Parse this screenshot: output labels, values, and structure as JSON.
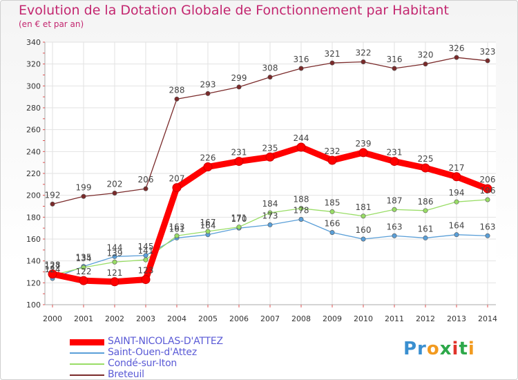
{
  "header": {
    "title": "Evolution de la Dotation Globale de Fonctionnement par Habitant",
    "subtitle": "(en € et par an)"
  },
  "logo": {
    "text": "Proxiti"
  },
  "colors": {
    "title": "#c3266f",
    "axis_text": "#333333",
    "grid": "#e2e2e2",
    "legend_text": "#5a5ad6"
  },
  "chart_data": {
    "type": "line",
    "title": "Evolution de la Dotation Globale de Fonctionnement par Habitant",
    "subtitle": "(en € et par an)",
    "x": [
      "2000",
      "2001",
      "2002",
      "2003",
      "2004",
      "2005",
      "2006",
      "2007",
      "2008",
      "2009",
      "2010",
      "2011",
      "2012",
      "2013",
      "2014"
    ],
    "ylim": [
      100,
      340
    ],
    "yticks": [
      100,
      120,
      140,
      160,
      180,
      200,
      220,
      240,
      260,
      280,
      300,
      320,
      340
    ],
    "grid": true,
    "legend_position": "bottom-left",
    "series": [
      {
        "name": "SAINT-NICOLAS-D'ATTEZ",
        "color": "#ff0000",
        "values": [
          128,
          122,
          121,
          123,
          207,
          226,
          231,
          235,
          244,
          232,
          239,
          231,
          225,
          217,
          206
        ]
      },
      {
        "name": "Saint-Ouen-d'Attez",
        "color": "#5a9fd8",
        "values": [
          124,
          135,
          144,
          145,
          161,
          164,
          170,
          173,
          178,
          166,
          160,
          163,
          161,
          164,
          163
        ]
      },
      {
        "name": "Condé-sur-Iton",
        "color": "#99dd66",
        "values": [
          127,
          134,
          139,
          141,
          163,
          167,
          171,
          184,
          188,
          185,
          181,
          187,
          186,
          194,
          196
        ]
      },
      {
        "name": "Breteuil",
        "color": "#7a2a2a",
        "values": [
          192,
          199,
          202,
          206,
          288,
          293,
          299,
          308,
          316,
          321,
          322,
          316,
          320,
          326,
          323
        ]
      }
    ]
  }
}
